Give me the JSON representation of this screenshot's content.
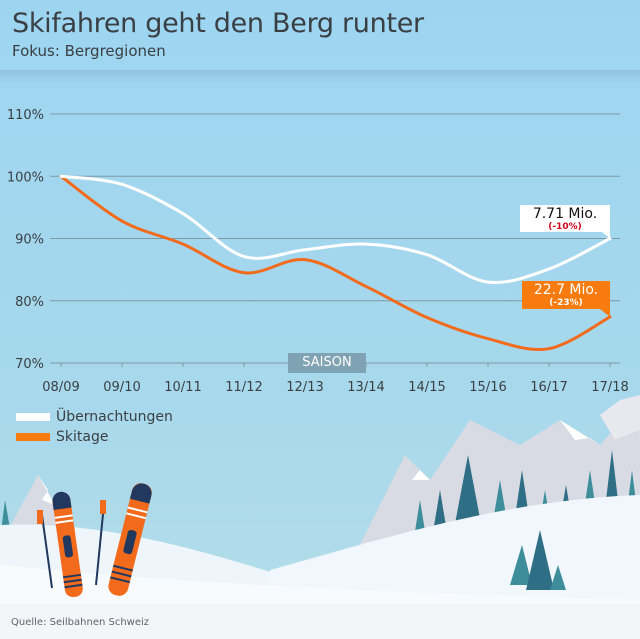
{
  "header": {
    "title": "Skifahren geht den Berg runter",
    "subtitle": "Fokus: Bergregionen"
  },
  "footer": {
    "source": "Quelle: Seilbahnen Schweiz"
  },
  "colors": {
    "background": "#9dd5f1",
    "uebernachtungen": "#ffffff",
    "skitage": "#f26b1d",
    "label_red": "#d0021b",
    "gridline": "#7f98a6",
    "text": "#3a3f44"
  },
  "chart_data": {
    "type": "line",
    "title": "Skifahren geht den Berg runter",
    "subtitle": "Fokus: Bergregionen",
    "xlabel": "SAISON",
    "ylabel": "",
    "categories": [
      "08/09",
      "09/10",
      "10/11",
      "11/12",
      "12/13",
      "13/14",
      "14/15",
      "15/16",
      "16/17",
      "17/18"
    ],
    "yticks": [
      "70%",
      "80%",
      "90%",
      "100%",
      "110%"
    ],
    "ytick_values": [
      70,
      80,
      90,
      100,
      110
    ],
    "ylim": [
      70,
      110
    ],
    "grid": true,
    "legend_position": "bottom-left",
    "series": [
      {
        "name": "Übernachtungen",
        "color": "#ffffff",
        "values": [
          100,
          98.7,
          94.0,
          87.1,
          88.2,
          89.1,
          87.4,
          83.0,
          85.1,
          90.0
        ]
      },
      {
        "name": "Skitage",
        "color": "#f26b1d",
        "values": [
          100,
          92.8,
          89.1,
          84.5,
          86.6,
          82.3,
          77.3,
          73.9,
          72.3,
          77.4
        ]
      }
    ],
    "annotations": [
      {
        "series": "Übernachtungen",
        "main": "7.71 Mio.",
        "sub": "(-10%)"
      },
      {
        "series": "Skitage",
        "main": "22.7 Mio.",
        "sub": "(-23%)"
      }
    ]
  }
}
